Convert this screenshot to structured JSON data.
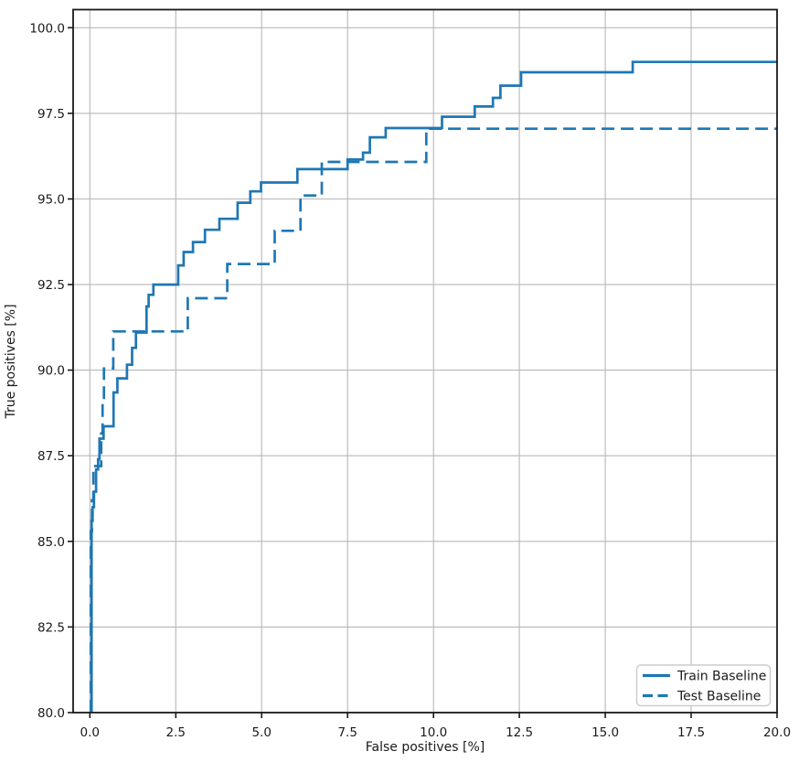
{
  "chart_data": {
    "type": "line",
    "title": "",
    "xlabel": "False positives [%]",
    "ylabel": "True positives [%]",
    "xlim": [
      -0.49,
      20.0
    ],
    "ylim": [
      80.0,
      100.53
    ],
    "grid": true,
    "legend_position": "lower right",
    "xticks": [
      0.0,
      2.5,
      5.0,
      7.5,
      10.0,
      12.5,
      15.0,
      17.5,
      20.0
    ],
    "xtick_labels": [
      "0.0",
      "2.5",
      "5.0",
      "7.5",
      "10.0",
      "12.5",
      "15.0",
      "17.5",
      "20.0"
    ],
    "yticks": [
      80.0,
      82.5,
      85.0,
      87.5,
      90.0,
      92.5,
      95.0,
      97.5,
      100.0
    ],
    "ytick_labels": [
      "80.0",
      "82.5",
      "85.0",
      "87.5",
      "90.0",
      "92.5",
      "95.0",
      "97.5",
      "100.0"
    ],
    "line_color": "#1f77b4",
    "series": [
      {
        "name": "Train Baseline",
        "style": "solid",
        "step": "post",
        "color": "#1f77b4",
        "points": [
          [
            0.05,
            80.0
          ],
          [
            0.05,
            85.6
          ],
          [
            0.08,
            86.0
          ],
          [
            0.12,
            86.45
          ],
          [
            0.18,
            87.1
          ],
          [
            0.24,
            87.4
          ],
          [
            0.28,
            88.0
          ],
          [
            0.4,
            88.36
          ],
          [
            0.69,
            89.35
          ],
          [
            0.8,
            89.76
          ],
          [
            1.08,
            90.16
          ],
          [
            1.23,
            90.65
          ],
          [
            1.34,
            91.1
          ],
          [
            1.65,
            91.86
          ],
          [
            1.71,
            92.2
          ],
          [
            1.85,
            92.5
          ],
          [
            2.57,
            93.06
          ],
          [
            2.73,
            93.45
          ],
          [
            3.0,
            93.74
          ],
          [
            3.35,
            94.1
          ],
          [
            3.77,
            94.42
          ],
          [
            4.3,
            94.89
          ],
          [
            4.67,
            95.22
          ],
          [
            4.98,
            95.48
          ],
          [
            6.04,
            95.87
          ],
          [
            7.5,
            96.15
          ],
          [
            7.95,
            96.35
          ],
          [
            8.15,
            96.8
          ],
          [
            8.61,
            97.07
          ],
          [
            10.25,
            97.4
          ],
          [
            11.2,
            97.7
          ],
          [
            11.73,
            97.95
          ],
          [
            11.95,
            98.31
          ],
          [
            12.55,
            98.7
          ],
          [
            15.8,
            99.0
          ],
          [
            20.0,
            99.0
          ]
        ]
      },
      {
        "name": "Test Baseline",
        "style": "dashed",
        "step": "post",
        "color": "#1f77b4",
        "points": [
          [
            0.03,
            80.0
          ],
          [
            0.03,
            85.3
          ],
          [
            0.06,
            86.2
          ],
          [
            0.1,
            87.2
          ],
          [
            0.33,
            88.15
          ],
          [
            0.37,
            89.1
          ],
          [
            0.41,
            90.05
          ],
          [
            0.68,
            91.13
          ],
          [
            2.85,
            92.1
          ],
          [
            4.0,
            93.1
          ],
          [
            5.38,
            94.07
          ],
          [
            6.13,
            95.1
          ],
          [
            6.75,
            96.08
          ],
          [
            9.79,
            97.05
          ],
          [
            20.0,
            97.05
          ]
        ]
      }
    ]
  }
}
